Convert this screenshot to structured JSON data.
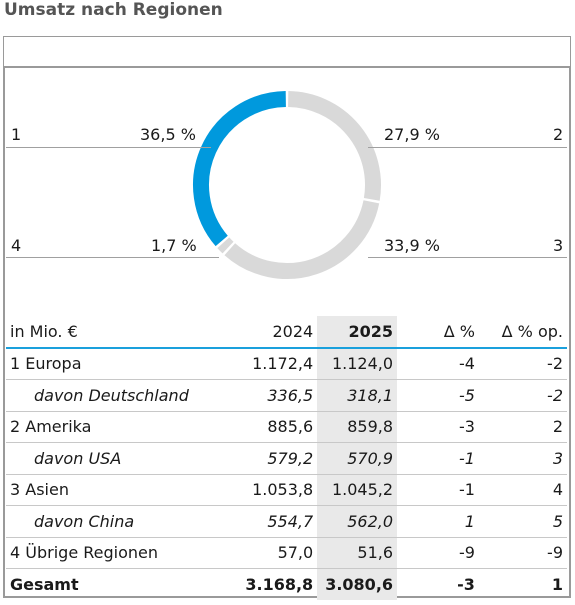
{
  "title": "Umsatz nach Regionen",
  "colors": {
    "accent": "#0099dd",
    "grey": "#d9d9d9",
    "rule": "#1aa0dc"
  },
  "chart_data": {
    "type": "pie",
    "variant": "donut",
    "categories": [
      "1",
      "2",
      "3",
      "4"
    ],
    "values": [
      36.5,
      27.9,
      33.9,
      1.7
    ],
    "labels": [
      "36,5 %",
      "27,9 %",
      "33,9 %",
      "1,7 %"
    ],
    "highlighted": "1"
  },
  "table": {
    "headers": [
      "in Mio. €",
      "2024",
      "2025",
      "Δ %",
      "Δ % op."
    ],
    "rows": [
      {
        "name": "1 Europa",
        "v2024": "1.172,4",
        "v2025": "1.124,0",
        "d": "-4",
        "dop": "-2"
      },
      {
        "name": "davon Deutschland",
        "v2024": "336,5",
        "v2025": "318,1",
        "d": "-5",
        "dop": "-2",
        "sub": true
      },
      {
        "name": "2 Amerika",
        "v2024": "885,6",
        "v2025": "859,8",
        "d": "-3",
        "dop": "2"
      },
      {
        "name": "davon USA",
        "v2024": "579,2",
        "v2025": "570,9",
        "d": "-1",
        "dop": "3",
        "sub": true
      },
      {
        "name": "3 Asien",
        "v2024": "1.053,8",
        "v2025": "1.045,2",
        "d": "-1",
        "dop": "4"
      },
      {
        "name": "davon China",
        "v2024": "554,7",
        "v2025": "562,0",
        "d": "1",
        "dop": "5",
        "sub": true
      },
      {
        "name": "4 Übrige Regionen",
        "v2024": "57,0",
        "v2025": "51,6",
        "d": "-9",
        "dop": "-9"
      },
      {
        "name": "Gesamt",
        "v2024": "3.168,8",
        "v2025": "3.080,6",
        "d": "-3",
        "dop": "1",
        "total": true
      }
    ]
  }
}
